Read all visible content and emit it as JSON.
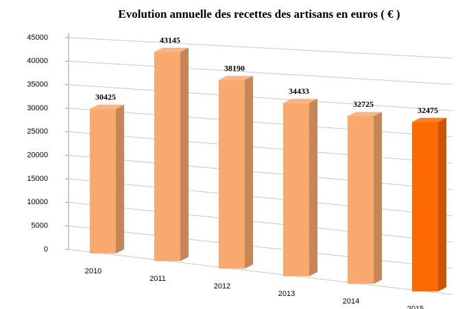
{
  "chart_data": {
    "type": "bar3d",
    "title": "Evolution annuelle des recettes des artisans en euros ( € )",
    "categories": [
      "2010",
      "2011",
      "2012",
      "2013",
      "2014",
      "2015"
    ],
    "values": [
      30425,
      43145,
      38190,
      34433,
      32725,
      32475
    ],
    "colors": [
      "#f9a86e",
      "#f9a86e",
      "#f9a86e",
      "#f9a86e",
      "#f9a86e",
      "#ff6a00"
    ],
    "ylim": [
      0,
      45000
    ],
    "yticks": [
      0,
      5000,
      10000,
      15000,
      20000,
      25000,
      30000,
      35000,
      40000,
      45000
    ],
    "grid": true
  }
}
